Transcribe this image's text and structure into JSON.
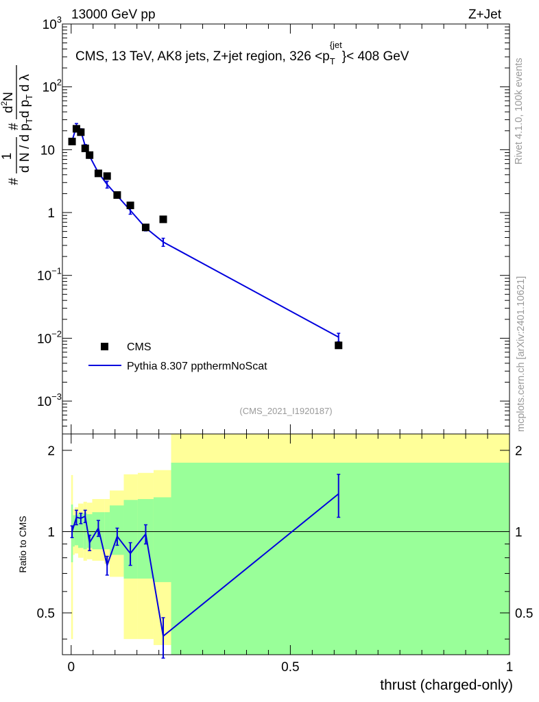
{
  "header": {
    "left": "13000 GeV pp",
    "right": "Z+Jet"
  },
  "side_text": {
    "rivet": "Rivet 4.1.0,  100k events",
    "mcplots": "mcplots.cern.ch [arXiv:2401.10621]"
  },
  "colors": {
    "mc": "#0000dd",
    "band_inner": "#99ff99",
    "band_outer": "#ffff99",
    "watermark": "#999999"
  },
  "chart_data": [
    {
      "type": "scatter",
      "title": "CMS, 13 TeV, AK8 jets, Z+jet region, 326 <p_T^{jet}> < 408 GeV",
      "title_parts": {
        "main": "CMS, 13 TeV, AK8 jets, Z+jet region, 326 <p",
        "sub": "T",
        "sup": "{jet",
        "close": "}< 408 GeV"
      },
      "ylabel": "1/N dN/dp_T d^2N/dp_T dλ",
      "ylabel_parts": {
        "hash1": "#",
        "one": "1",
        "den": "d N / d p",
        "den_sub": "T",
        "hash2": "#",
        "num2": "d",
        "num2_sup": "2",
        "num2_rest": "N",
        "den2": "d p",
        "den2_sub": "T",
        "den2_rest": "d λ"
      },
      "yscale": "log",
      "ylim": [
        0.0003,
        1000
      ],
      "xlim": [
        -0.02,
        1.0
      ],
      "y_ticks": [
        {
          "base": "10",
          "exp": "3",
          "value": 1000
        },
        {
          "base": "10",
          "exp": "2",
          "value": 100
        },
        {
          "base": "10",
          "exp": "",
          "value": 10
        },
        {
          "base": "1",
          "exp": "",
          "value": 1
        },
        {
          "base": "10",
          "exp": "−1",
          "value": 0.1
        },
        {
          "base": "10",
          "exp": "−2",
          "value": 0.01
        },
        {
          "base": "10",
          "exp": "−3",
          "value": 0.001
        }
      ],
      "watermark": "(CMS_2021_I1920187)",
      "legend": [
        {
          "label": "CMS",
          "marker": "square"
        },
        {
          "label": "Pythia 8.307 ppthermNoScat",
          "marker": "line"
        }
      ],
      "legend_position": "lower-left",
      "series": [
        {
          "name": "CMS",
          "x": [
            0.002,
            0.012,
            0.022,
            0.032,
            0.042,
            0.062,
            0.082,
            0.105,
            0.135,
            0.17,
            0.21,
            0.61
          ],
          "y": [
            13.5,
            21.5,
            19.0,
            10.5,
            8.2,
            4.2,
            3.8,
            1.9,
            1.3,
            0.58,
            0.78,
            0.0077
          ]
        },
        {
          "name": "Pythia 8.307 ppthermNoScat",
          "x": [
            0.002,
            0.012,
            0.022,
            0.032,
            0.042,
            0.062,
            0.082,
            0.105,
            0.135,
            0.17,
            0.21,
            0.61
          ],
          "y": [
            13.8,
            23.5,
            20.0,
            11.5,
            7.9,
            4.3,
            2.8,
            1.85,
            1.08,
            0.57,
            0.34,
            0.0104
          ],
          "yerr": [
            0.6,
            2.6,
            1.5,
            0.6,
            0.6,
            0.35,
            0.35,
            0.15,
            0.14,
            0.06,
            0.05,
            0.0016
          ]
        }
      ]
    },
    {
      "type": "line",
      "ylabel": "Ratio to CMS",
      "xlabel": "thrust (charged-only)",
      "xlim": [
        -0.02,
        1.0
      ],
      "ylim": [
        0.35,
        2.3
      ],
      "yscale": "log",
      "x_ticks": [
        {
          "label": "0",
          "value": 0
        },
        {
          "label": "0.5",
          "value": 0.5
        },
        {
          "label": "1",
          "value": 1
        }
      ],
      "y_ticks": [
        {
          "label": "0.5",
          "value": 0.5
        },
        {
          "label": "1",
          "value": 1
        },
        {
          "label": "2",
          "value": 2
        }
      ],
      "uncertainty_bands": {
        "bins": [
          0,
          0.004,
          0.008,
          0.016,
          0.028,
          0.036,
          0.048,
          0.076,
          0.088,
          0.12,
          0.152,
          0.188,
          0.228,
          1.0
        ],
        "inner_low": [
          0.77,
          0.88,
          0.89,
          0.87,
          0.86,
          0.87,
          0.86,
          0.86,
          0.82,
          0.67,
          0.67,
          0.65,
          0.01
        ],
        "inner_high": [
          1.26,
          1.15,
          1.15,
          1.17,
          1.17,
          1.16,
          1.18,
          1.18,
          1.25,
          1.31,
          1.32,
          1.34,
          1.8
        ],
        "outer_low": [
          0.4,
          0.82,
          0.83,
          0.8,
          0.78,
          0.79,
          0.78,
          0.76,
          0.68,
          0.4,
          0.4,
          0.38,
          0.01
        ],
        "outer_high": [
          1.62,
          1.21,
          1.23,
          1.27,
          1.29,
          1.28,
          1.32,
          1.32,
          1.42,
          1.63,
          1.65,
          1.69,
          3.0
        ]
      },
      "series": [
        {
          "name": "Pythia 8.307 ppthermNoScat",
          "x": [
            0.002,
            0.012,
            0.022,
            0.032,
            0.042,
            0.062,
            0.082,
            0.105,
            0.135,
            0.17,
            0.21,
            0.61
          ],
          "y": [
            1.0,
            1.13,
            1.12,
            1.14,
            0.91,
            1.03,
            0.75,
            0.96,
            0.83,
            0.98,
            0.41,
            1.38
          ],
          "yerr": [
            0.05,
            0.07,
            0.05,
            0.06,
            0.06,
            0.07,
            0.06,
            0.07,
            0.08,
            0.08,
            0.07,
            0.25
          ]
        }
      ]
    }
  ]
}
